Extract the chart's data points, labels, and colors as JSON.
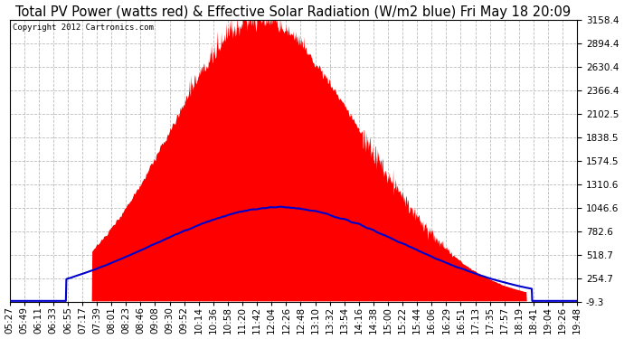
{
  "title": "Total PV Power (watts red) & Effective Solar Radiation (W/m2 blue) Fri May 18 20:09",
  "copyright": "Copyright 2012 Cartronics.com",
  "y_ticks": [
    3158.4,
    2894.4,
    2630.4,
    2366.4,
    2102.5,
    1838.5,
    1574.5,
    1310.6,
    1046.6,
    782.6,
    518.7,
    254.7,
    -9.3
  ],
  "y_min": -9.3,
  "y_max": 3158.4,
  "x_labels": [
    "05:27",
    "05:49",
    "06:11",
    "06:33",
    "06:55",
    "07:17",
    "07:39",
    "08:01",
    "08:23",
    "08:46",
    "09:08",
    "09:30",
    "09:52",
    "10:14",
    "10:36",
    "10:58",
    "11:20",
    "11:42",
    "12:04",
    "12:26",
    "12:48",
    "13:10",
    "13:32",
    "13:54",
    "14:16",
    "14:38",
    "15:00",
    "15:22",
    "15:44",
    "16:06",
    "16:29",
    "16:51",
    "17:13",
    "17:35",
    "17:57",
    "18:19",
    "18:41",
    "19:04",
    "19:26",
    "19:48"
  ],
  "background_color": "#ffffff",
  "plot_bg_color": "#ffffff",
  "grid_color": "#bbbbbb",
  "red_color": "#ff0000",
  "blue_color": "#0000cc",
  "title_fontsize": 10.5,
  "tick_fontsize": 7.5,
  "copyright_fontsize": 6.5
}
